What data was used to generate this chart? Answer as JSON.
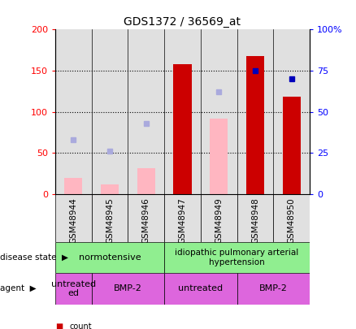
{
  "title": "GDS1372 / 36569_at",
  "samples": [
    "GSM48944",
    "GSM48945",
    "GSM48946",
    "GSM48947",
    "GSM48949",
    "GSM48948",
    "GSM48950"
  ],
  "x_positions": [
    0,
    1,
    2,
    3,
    4,
    5,
    6
  ],
  "count_values": [
    null,
    null,
    null,
    158,
    null,
    168,
    118
  ],
  "rank_pct": [
    null,
    null,
    null,
    null,
    null,
    75,
    70
  ],
  "value_absent": [
    20,
    12,
    32,
    null,
    92,
    null,
    null
  ],
  "rank_absent_pct": [
    33,
    26,
    43,
    null,
    62,
    null,
    null
  ],
  "ylim_left": [
    0,
    200
  ],
  "ylim_right": [
    0,
    100
  ],
  "yticks_left": [
    0,
    50,
    100,
    150,
    200
  ],
  "ytick_labels_left": [
    "0",
    "50",
    "100",
    "150",
    "200"
  ],
  "yticks_right": [
    0,
    25,
    50,
    75,
    100
  ],
  "ytick_labels_right": [
    "0",
    "25",
    "50",
    "75",
    "100%"
  ],
  "bar_color_count": "#CC0000",
  "bar_color_value_absent": "#FFB6C1",
  "dot_color_rank": "#0000BB",
  "dot_color_rank_absent": "#AAAADD",
  "bar_width": 0.5,
  "plot_bg": "#E0E0E0",
  "fig_bg": "#FFFFFF",
  "disease_norm_color": "#90EE90",
  "disease_idio_color": "#90EE90",
  "agent_color": "#DD66DD"
}
